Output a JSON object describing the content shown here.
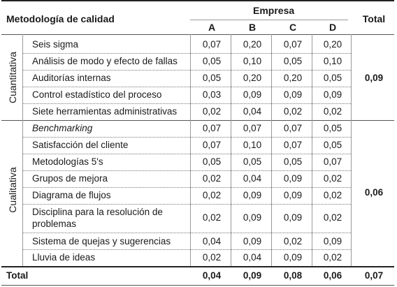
{
  "header": {
    "methodology": "Metodología de calidad",
    "company": "Empresa",
    "companies": [
      "A",
      "B",
      "C",
      "D"
    ],
    "total": "Total"
  },
  "groups": [
    {
      "label": "Cuantitativa",
      "total": "0,09",
      "rows": [
        {
          "name": "Seis sigma",
          "values": [
            "0,07",
            "0,20",
            "0,07",
            "0,20"
          ]
        },
        {
          "name": "Análisis de modo y efecto de fallas",
          "values": [
            "0,05",
            "0,10",
            "0,05",
            "0,10"
          ]
        },
        {
          "name": "Auditorías internas",
          "values": [
            "0,05",
            "0,20",
            "0,20",
            "0,05"
          ]
        },
        {
          "name": "Control estadístico del proceso",
          "values": [
            "0,03",
            "0,09",
            "0,09",
            "0,09"
          ]
        },
        {
          "name": "Siete herramientas administrativas",
          "values": [
            "0,02",
            "0,04",
            "0,02",
            "0,02"
          ]
        }
      ]
    },
    {
      "label": "Cualitativa",
      "total": "0,06",
      "rows": [
        {
          "name": "Benchmarking",
          "values": [
            "0,07",
            "0,07",
            "0,07",
            "0,05"
          ]
        },
        {
          "name": "Satisfacción del cliente",
          "values": [
            "0,07",
            "0,10",
            "0,07",
            "0,05"
          ]
        },
        {
          "name": "Metodologías 5's",
          "values": [
            "0,05",
            "0,05",
            "0,05",
            "0,07"
          ]
        },
        {
          "name": "Grupos de mejora",
          "values": [
            "0,02",
            "0,04",
            "0,09",
            "0,02"
          ]
        },
        {
          "name": "Diagrama de flujos",
          "values": [
            "0,02",
            "0,09",
            "0,09",
            "0,02"
          ]
        },
        {
          "name": "Disciplina para la resolución de problemas",
          "values": [
            "0,02",
            "0,09",
            "0,09",
            "0,02"
          ]
        },
        {
          "name": "Sistema de quejas y sugerencias",
          "values": [
            "0,04",
            "0,09",
            "0,02",
            "0,09"
          ]
        },
        {
          "name": "Lluvia de ideas",
          "values": [
            "0,02",
            "0,04",
            "0,09",
            "0,02"
          ]
        }
      ]
    }
  ],
  "footer": {
    "label": "Total",
    "values": [
      "0,04",
      "0,09",
      "0,08",
      "0,06"
    ],
    "total": "0,07"
  }
}
